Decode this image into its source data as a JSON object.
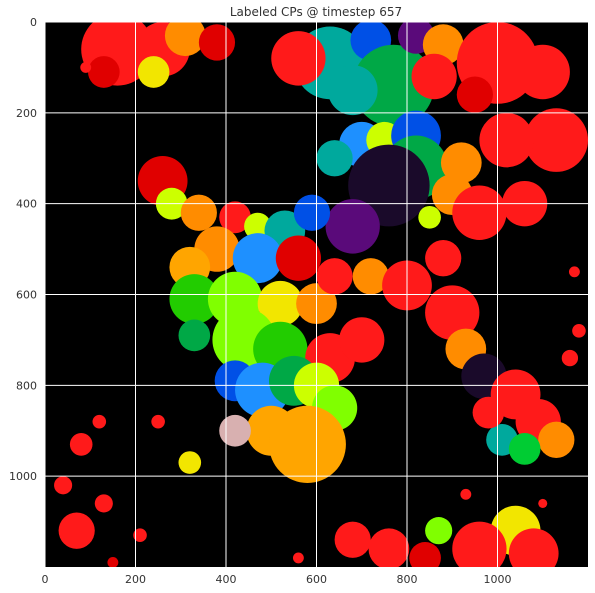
{
  "chart_data": {
    "type": "heatmap",
    "title": "Labeled CPs @ timestep 657",
    "xlabel": "",
    "ylabel": "",
    "xlim": [
      0,
      1200
    ],
    "ylim": [
      1200,
      0
    ],
    "x_ticks": [
      0,
      200,
      400,
      600,
      800,
      1000
    ],
    "y_ticks": [
      0,
      200,
      400,
      600,
      800,
      1000
    ],
    "grid": true,
    "background_color": "#000000",
    "grid_color": "#ffffff",
    "palette": [
      "#ff1a1a",
      "#e00000",
      "#ff8c00",
      "#ffa500",
      "#f2e600",
      "#ccff00",
      "#80ff00",
      "#22cc00",
      "#00a846",
      "#00a99d",
      "#1e90ff",
      "#0050e6",
      "#1a0a2a",
      "#5a0a7a",
      "#d8b0b0",
      "#c0c0c0"
    ],
    "regions": [
      {
        "x": 160,
        "y": 60,
        "r": 80,
        "color": "#ff1a1a"
      },
      {
        "x": 260,
        "y": 60,
        "r": 60,
        "color": "#ff1a1a"
      },
      {
        "x": 310,
        "y": 30,
        "r": 45,
        "color": "#ff8c00"
      },
      {
        "x": 380,
        "y": 45,
        "r": 40,
        "color": "#e00000"
      },
      {
        "x": 240,
        "y": 110,
        "r": 35,
        "color": "#f2e600"
      },
      {
        "x": 130,
        "y": 110,
        "r": 35,
        "color": "#e00000"
      },
      {
        "x": 90,
        "y": 100,
        "r": 12,
        "color": "#ff1a1a"
      },
      {
        "x": 630,
        "y": 90,
        "r": 80,
        "color": "#00a99d"
      },
      {
        "x": 560,
        "y": 80,
        "r": 60,
        "color": "#ff1a1a"
      },
      {
        "x": 720,
        "y": 40,
        "r": 45,
        "color": "#0050e6"
      },
      {
        "x": 770,
        "y": 140,
        "r": 90,
        "color": "#00a846"
      },
      {
        "x": 680,
        "y": 150,
        "r": 55,
        "color": "#00a99d"
      },
      {
        "x": 820,
        "y": 30,
        "r": 40,
        "color": "#5a0a7a"
      },
      {
        "x": 880,
        "y": 50,
        "r": 45,
        "color": "#ff8c00"
      },
      {
        "x": 860,
        "y": 120,
        "r": 50,
        "color": "#ff1a1a"
      },
      {
        "x": 1000,
        "y": 90,
        "r": 90,
        "color": "#ff1a1a"
      },
      {
        "x": 950,
        "y": 160,
        "r": 40,
        "color": "#e00000"
      },
      {
        "x": 1100,
        "y": 110,
        "r": 60,
        "color": "#ff1a1a"
      },
      {
        "x": 1130,
        "y": 260,
        "r": 70,
        "color": "#ff1a1a"
      },
      {
        "x": 1020,
        "y": 260,
        "r": 60,
        "color": "#ff1a1a"
      },
      {
        "x": 700,
        "y": 270,
        "r": 50,
        "color": "#1e90ff"
      },
      {
        "x": 640,
        "y": 300,
        "r": 40,
        "color": "#00a99d"
      },
      {
        "x": 750,
        "y": 260,
        "r": 40,
        "color": "#ccff00"
      },
      {
        "x": 820,
        "y": 250,
        "r": 55,
        "color": "#0050e6"
      },
      {
        "x": 820,
        "y": 320,
        "r": 70,
        "color": "#00a846"
      },
      {
        "x": 760,
        "y": 360,
        "r": 90,
        "color": "#1a0a2a"
      },
      {
        "x": 680,
        "y": 450,
        "r": 60,
        "color": "#5a0a7a"
      },
      {
        "x": 920,
        "y": 310,
        "r": 45,
        "color": "#ff8c00"
      },
      {
        "x": 900,
        "y": 380,
        "r": 45,
        "color": "#ff8c00"
      },
      {
        "x": 960,
        "y": 420,
        "r": 60,
        "color": "#ff1a1a"
      },
      {
        "x": 1060,
        "y": 400,
        "r": 50,
        "color": "#ff1a1a"
      },
      {
        "x": 850,
        "y": 430,
        "r": 25,
        "color": "#ccff00"
      },
      {
        "x": 880,
        "y": 520,
        "r": 40,
        "color": "#ff1a1a"
      },
      {
        "x": 260,
        "y": 350,
        "r": 55,
        "color": "#e00000"
      },
      {
        "x": 280,
        "y": 400,
        "r": 35,
        "color": "#ccff00"
      },
      {
        "x": 340,
        "y": 420,
        "r": 40,
        "color": "#ff8c00"
      },
      {
        "x": 420,
        "y": 430,
        "r": 35,
        "color": "#ff1a1a"
      },
      {
        "x": 470,
        "y": 450,
        "r": 30,
        "color": "#ccff00"
      },
      {
        "x": 530,
        "y": 460,
        "r": 45,
        "color": "#00a99d"
      },
      {
        "x": 590,
        "y": 420,
        "r": 40,
        "color": "#0050e6"
      },
      {
        "x": 380,
        "y": 500,
        "r": 50,
        "color": "#ff8c00"
      },
      {
        "x": 470,
        "y": 520,
        "r": 55,
        "color": "#1e90ff"
      },
      {
        "x": 560,
        "y": 520,
        "r": 50,
        "color": "#e00000"
      },
      {
        "x": 320,
        "y": 540,
        "r": 45,
        "color": "#ffa500"
      },
      {
        "x": 330,
        "y": 610,
        "r": 55,
        "color": "#22cc00"
      },
      {
        "x": 420,
        "y": 610,
        "r": 60,
        "color": "#80ff00"
      },
      {
        "x": 520,
        "y": 620,
        "r": 50,
        "color": "#f2e600"
      },
      {
        "x": 600,
        "y": 620,
        "r": 45,
        "color": "#ff8c00"
      },
      {
        "x": 640,
        "y": 560,
        "r": 40,
        "color": "#ff1a1a"
      },
      {
        "x": 720,
        "y": 560,
        "r": 40,
        "color": "#ff8c00"
      },
      {
        "x": 800,
        "y": 580,
        "r": 55,
        "color": "#ff1a1a"
      },
      {
        "x": 330,
        "y": 690,
        "r": 35,
        "color": "#00a846"
      },
      {
        "x": 440,
        "y": 700,
        "r": 70,
        "color": "#80ff00"
      },
      {
        "x": 520,
        "y": 720,
        "r": 60,
        "color": "#22cc00"
      },
      {
        "x": 630,
        "y": 740,
        "r": 55,
        "color": "#ff1a1a"
      },
      {
        "x": 700,
        "y": 700,
        "r": 50,
        "color": "#ff1a1a"
      },
      {
        "x": 420,
        "y": 790,
        "r": 45,
        "color": "#0050e6"
      },
      {
        "x": 480,
        "y": 810,
        "r": 60,
        "color": "#1e90ff"
      },
      {
        "x": 550,
        "y": 790,
        "r": 55,
        "color": "#00a846"
      },
      {
        "x": 600,
        "y": 800,
        "r": 50,
        "color": "#ccff00"
      },
      {
        "x": 640,
        "y": 850,
        "r": 50,
        "color": "#80ff00"
      },
      {
        "x": 500,
        "y": 900,
        "r": 55,
        "color": "#ffa500"
      },
      {
        "x": 580,
        "y": 930,
        "r": 85,
        "color": "#ffa500"
      },
      {
        "x": 420,
        "y": 900,
        "r": 35,
        "color": "#d8b0b0"
      },
      {
        "x": 320,
        "y": 970,
        "r": 25,
        "color": "#f2e600"
      },
      {
        "x": 900,
        "y": 640,
        "r": 60,
        "color": "#ff1a1a"
      },
      {
        "x": 930,
        "y": 720,
        "r": 45,
        "color": "#ff8c00"
      },
      {
        "x": 970,
        "y": 780,
        "r": 50,
        "color": "#1a0a2a"
      },
      {
        "x": 1040,
        "y": 820,
        "r": 55,
        "color": "#ff1a1a"
      },
      {
        "x": 1090,
        "y": 880,
        "r": 50,
        "color": "#ff1a1a"
      },
      {
        "x": 1130,
        "y": 920,
        "r": 40,
        "color": "#ff8c00"
      },
      {
        "x": 1010,
        "y": 920,
        "r": 35,
        "color": "#00a99d"
      },
      {
        "x": 1060,
        "y": 940,
        "r": 35,
        "color": "#00cc33"
      },
      {
        "x": 980,
        "y": 860,
        "r": 35,
        "color": "#ff1a1a"
      },
      {
        "x": 1040,
        "y": 1120,
        "r": 55,
        "color": "#f2e600"
      },
      {
        "x": 960,
        "y": 1160,
        "r": 60,
        "color": "#ff1a1a"
      },
      {
        "x": 1080,
        "y": 1170,
        "r": 55,
        "color": "#ff1a1a"
      },
      {
        "x": 870,
        "y": 1120,
        "r": 30,
        "color": "#80ff00"
      },
      {
        "x": 840,
        "y": 1180,
        "r": 35,
        "color": "#e00000"
      },
      {
        "x": 760,
        "y": 1160,
        "r": 45,
        "color": "#ff1a1a"
      },
      {
        "x": 680,
        "y": 1140,
        "r": 40,
        "color": "#ff1a1a"
      },
      {
        "x": 70,
        "y": 1120,
        "r": 40,
        "color": "#ff1a1a"
      },
      {
        "x": 80,
        "y": 930,
        "r": 25,
        "color": "#ff1a1a"
      },
      {
        "x": 40,
        "y": 1020,
        "r": 20,
        "color": "#ff1a1a"
      },
      {
        "x": 130,
        "y": 1060,
        "r": 20,
        "color": "#ff1a1a"
      },
      {
        "x": 120,
        "y": 880,
        "r": 15,
        "color": "#ff1a1a"
      },
      {
        "x": 250,
        "y": 880,
        "r": 15,
        "color": "#ff1a1a"
      },
      {
        "x": 210,
        "y": 1130,
        "r": 15,
        "color": "#ff1a1a"
      },
      {
        "x": 1180,
        "y": 680,
        "r": 15,
        "color": "#ff1a1a"
      },
      {
        "x": 1170,
        "y": 550,
        "r": 12,
        "color": "#ff1a1a"
      },
      {
        "x": 1160,
        "y": 740,
        "r": 18,
        "color": "#ff1a1a"
      },
      {
        "x": 930,
        "y": 1040,
        "r": 12,
        "color": "#ff1a1a"
      },
      {
        "x": 560,
        "y": 1180,
        "r": 12,
        "color": "#ff1a1a"
      },
      {
        "x": 1100,
        "y": 1060,
        "r": 10,
        "color": "#ff1a1a"
      },
      {
        "x": 150,
        "y": 1190,
        "r": 12,
        "color": "#e00000"
      }
    ]
  }
}
